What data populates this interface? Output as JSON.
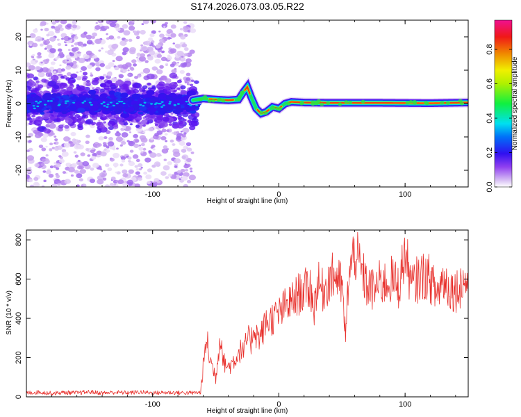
{
  "title": "S174.2026.073.03.05.R22",
  "colors": {
    "snr_line": "#e8302c",
    "spectrum_stops": [
      "#f4eefa",
      "#d6b8f0",
      "#a060f0",
      "#6a10f0",
      "#2020f0",
      "#00d0f0",
      "#20e840",
      "#f0f000",
      "#f08000",
      "#f01010",
      "#f01080"
    ]
  },
  "chart_data": [
    {
      "type": "heatmap",
      "id": "spectrogram",
      "xlabel": "Height of straight line (km)",
      "ylabel": "Frequency (Hz)",
      "xlim": [
        -200,
        150
      ],
      "ylim": [
        -25,
        25
      ],
      "xticks": [
        -100,
        0,
        100
      ],
      "xtick_labels": [
        "-100",
        "0",
        "100"
      ],
      "yticks": [
        -20,
        -10,
        0,
        10,
        20
      ],
      "ytick_labels": [
        "-20",
        "-10",
        "0",
        "10",
        "20"
      ],
      "ridge": {
        "x": [
          -68,
          -60,
          -50,
          -40,
          -32,
          -28,
          -25,
          -22,
          -18,
          -14,
          -10,
          -5,
          0,
          5,
          10,
          20,
          40,
          80,
          120,
          150
        ],
        "y": [
          1,
          1.5,
          1.2,
          1,
          1.2,
          3.5,
          5,
          2,
          -1.5,
          -3,
          -2.5,
          -1,
          -1.5,
          0,
          0.5,
          0.3,
          0.2,
          0.2,
          0.1,
          0.3
        ]
      },
      "colorbar": {
        "label": "Normalized spectral amplitude",
        "range": [
          0,
          0.97
        ],
        "ticks": [
          0,
          0.2,
          0.4,
          0.6,
          0.8
        ],
        "tick_labels": [
          "0.0",
          "0.2",
          "0.4",
          "0.6",
          "0.8"
        ]
      }
    },
    {
      "type": "line",
      "id": "snr",
      "xlabel": "Height of straight line (km)",
      "ylabel": "SNR (10 * v/v)",
      "xlim": [
        -200,
        150
      ],
      "ylim": [
        0,
        850
      ],
      "xticks": [
        -100,
        0,
        100
      ],
      "xtick_labels": [
        "-100",
        "0",
        "100"
      ],
      "yticks": [
        0,
        200,
        400,
        600,
        800
      ],
      "ytick_labels": [
        "0",
        "200",
        "400",
        "600",
        "800"
      ],
      "series": [
        {
          "name": "SNR",
          "x": [
            -200,
            -190,
            -180,
            -170,
            -160,
            -150,
            -140,
            -130,
            -120,
            -110,
            -100,
            -90,
            -80,
            -70,
            -62,
            -60,
            -57,
            -55,
            -50,
            -46,
            -44,
            -40,
            -35,
            -30,
            -28,
            -25,
            -22,
            -20,
            -18,
            -15,
            -10,
            -5,
            0,
            5,
            10,
            15,
            20,
            25,
            28,
            30,
            35,
            40,
            45,
            50,
            53,
            55,
            60,
            65,
            70,
            75,
            80,
            85,
            90,
            95,
            100,
            105,
            110,
            115,
            120,
            125,
            130,
            135,
            140,
            145,
            150
          ],
          "values": [
            20,
            24,
            18,
            22,
            20,
            25,
            19,
            23,
            21,
            24,
            20,
            22,
            21,
            20,
            22,
            150,
            300,
            200,
            100,
            330,
            180,
            150,
            190,
            240,
            220,
            300,
            280,
            360,
            320,
            300,
            380,
            400,
            420,
            460,
            480,
            520,
            540,
            560,
            440,
            580,
            540,
            600,
            620,
            560,
            290,
            600,
            740,
            650,
            560,
            540,
            580,
            580,
            600,
            560,
            740,
            560,
            600,
            620,
            600,
            520,
            600,
            560,
            540,
            580,
            590
          ]
        }
      ]
    }
  ]
}
